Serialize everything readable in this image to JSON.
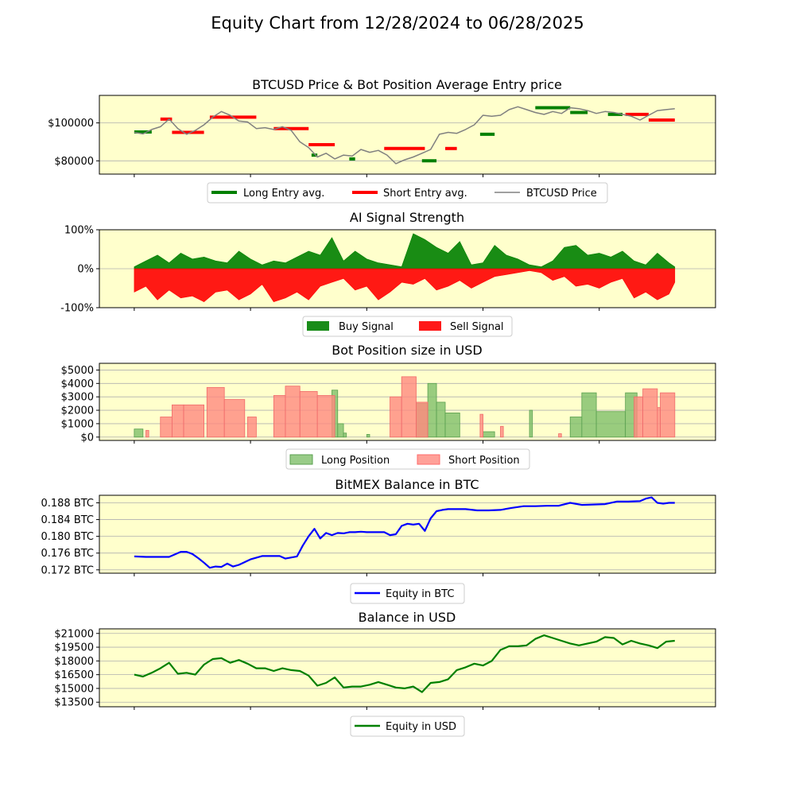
{
  "title": "Equity Chart from 12/28/2024 to 06/28/2025",
  "colors": {
    "panel_bg": "#ffffcc",
    "grid": "#b0b0b0",
    "long": "#008000",
    "short": "#ff0000",
    "price": "#808080",
    "buy": "#008000",
    "sell": "#ff0000",
    "long_area": "#7fbf6a",
    "short_area": "#ff8a80",
    "btc_line": "#0000ff",
    "usd_line": "#008000"
  },
  "chart_data": [
    {
      "id": "price",
      "type": "line",
      "title": "BTCUSD Price & Bot Position Average Entry price",
      "ylim": [
        73000,
        114500
      ],
      "yticks": [
        80000,
        100000
      ],
      "ytick_labels": [
        "$80000",
        "$100000"
      ],
      "grid": true,
      "legend": [
        "Long Entry avg.",
        "Short Entry avg.",
        "BTCUSD Price"
      ],
      "legend_placement": "below",
      "series": [
        {
          "name": "BTCUSD Price",
          "x": [
            0,
            3,
            6,
            9,
            12,
            15,
            18,
            21,
            24,
            27,
            30,
            33,
            36,
            39,
            42,
            45,
            48,
            51,
            54,
            57,
            60,
            63,
            66,
            69,
            72,
            75,
            78,
            81,
            84,
            87,
            90,
            93,
            96,
            99,
            102,
            105,
            108,
            111,
            114,
            117,
            120,
            123,
            126,
            129,
            132,
            135,
            138,
            141,
            144,
            147,
            150,
            153,
            156,
            159,
            162,
            165,
            168,
            171,
            174,
            177,
            180,
            183,
            186
          ],
          "values": [
            95000,
            94200,
            96500,
            98000,
            102000,
            97000,
            94000,
            96000,
            99000,
            103000,
            106000,
            104000,
            101000,
            100500,
            97000,
            97500,
            96500,
            98000,
            96000,
            90000,
            87000,
            82000,
            84000,
            81000,
            83000,
            82500,
            86000,
            84500,
            85500,
            83000,
            78500,
            80500,
            82000,
            84000,
            86000,
            94000,
            95000,
            94500,
            96500,
            99000,
            104000,
            103500,
            104000,
            107000,
            108500,
            107000,
            105500,
            104500,
            106000,
            105000,
            108000,
            107500,
            106500,
            105000,
            106000,
            105500,
            104500,
            103500,
            101500,
            104000,
            106500,
            107000,
            107500
          ]
        },
        {
          "name": "Long Entry avg.",
          "segments": [
            [
              0,
              6,
              95200
            ],
            [
              61,
              63,
              83000
            ],
            [
              74,
              76,
              81000
            ],
            [
              99,
              104,
              80000
            ],
            [
              119,
              124,
              94000
            ],
            [
              138,
              150,
              108000
            ],
            [
              150,
              156,
              105500
            ],
            [
              163,
              168,
              104500
            ]
          ]
        },
        {
          "name": "Short Entry avg.",
          "segments": [
            [
              9,
              13,
              102000
            ],
            [
              13,
              24,
              95000
            ],
            [
              26,
              42,
              103000
            ],
            [
              48,
              60,
              97000
            ],
            [
              60,
              69,
              88500
            ],
            [
              86,
              100,
              86500
            ],
            [
              107,
              111,
              86500
            ],
            [
              169,
              177,
              104500
            ],
            [
              177,
              186,
              101500
            ]
          ]
        }
      ]
    },
    {
      "id": "signal",
      "type": "area",
      "title": "AI Signal Strength",
      "ylim": [
        -100,
        100
      ],
      "yticks": [
        -100,
        0,
        100
      ],
      "ytick_labels": [
        "-100%",
        "0%",
        "100%"
      ],
      "grid": true,
      "legend": [
        "Buy Signal",
        "Sell Signal"
      ],
      "legend_placement": "below",
      "series": [
        {
          "name": "Buy Signal",
          "x": [
            0,
            4,
            8,
            12,
            16,
            20,
            24,
            28,
            32,
            36,
            40,
            44,
            48,
            52,
            56,
            60,
            64,
            68,
            72,
            76,
            80,
            84,
            88,
            92,
            96,
            100,
            104,
            108,
            112,
            116,
            120,
            124,
            128,
            132,
            136,
            140,
            144,
            148,
            152,
            156,
            160,
            164,
            168,
            172,
            176,
            180,
            184,
            186
          ],
          "values": [
            5,
            20,
            35,
            15,
            40,
            25,
            30,
            20,
            15,
            45,
            25,
            10,
            20,
            15,
            30,
            45,
            35,
            80,
            20,
            45,
            25,
            15,
            10,
            5,
            90,
            75,
            55,
            40,
            70,
            10,
            15,
            60,
            35,
            25,
            10,
            5,
            20,
            55,
            60,
            35,
            40,
            30,
            45,
            20,
            10,
            40,
            15,
            5
          ]
        },
        {
          "name": "Sell Signal",
          "x": [
            0,
            4,
            8,
            12,
            16,
            20,
            24,
            28,
            32,
            36,
            40,
            44,
            48,
            52,
            56,
            60,
            64,
            68,
            72,
            76,
            80,
            84,
            88,
            92,
            96,
            100,
            104,
            108,
            112,
            116,
            120,
            124,
            128,
            132,
            136,
            140,
            144,
            148,
            152,
            156,
            160,
            164,
            168,
            172,
            176,
            180,
            184,
            186
          ],
          "values": [
            -60,
            -45,
            -80,
            -55,
            -75,
            -70,
            -85,
            -60,
            -55,
            -80,
            -65,
            -40,
            -85,
            -75,
            -60,
            -80,
            -45,
            -35,
            -25,
            -55,
            -45,
            -80,
            -60,
            -35,
            -40,
            -25,
            -55,
            -45,
            -30,
            -50,
            -35,
            -20,
            -15,
            -10,
            -5,
            -10,
            -30,
            -20,
            -45,
            -40,
            -50,
            -35,
            -25,
            -75,
            -60,
            -80,
            -65,
            -35
          ]
        }
      ]
    },
    {
      "id": "position",
      "type": "area",
      "title": "Bot Position size in USD",
      "ylim": [
        -250,
        5500
      ],
      "yticks": [
        0,
        1000,
        2000,
        3000,
        4000,
        5000
      ],
      "ytick_labels": [
        "$0",
        "$1000",
        "$2000",
        "$3000",
        "$4000",
        "$5000"
      ],
      "grid": true,
      "legend": [
        "Long Position",
        "Short Position"
      ],
      "legend_placement": "below",
      "series": [
        {
          "name": "Long Position",
          "blocks": [
            [
              0,
              3,
              600
            ],
            [
              68,
              70,
              3500
            ],
            [
              70,
              72,
              1000
            ],
            [
              72,
              73,
              300
            ],
            [
              80,
              81,
              200
            ],
            [
              97,
              101,
              2500
            ],
            [
              101,
              104,
              4000
            ],
            [
              104,
              107,
              2600
            ],
            [
              107,
              112,
              1800
            ],
            [
              120,
              124,
              400
            ],
            [
              136,
              137,
              2000
            ],
            [
              150,
              154,
              1500
            ],
            [
              154,
              159,
              3300
            ],
            [
              159,
              169,
              1900
            ],
            [
              169,
              173,
              3300
            ]
          ]
        },
        {
          "name": "Short Position",
          "blocks": [
            [
              4,
              5,
              500
            ],
            [
              9,
              13,
              1500
            ],
            [
              13,
              17,
              2400
            ],
            [
              17,
              24,
              2400
            ],
            [
              25,
              31,
              3700
            ],
            [
              31,
              38,
              2800
            ],
            [
              39,
              42,
              1500
            ],
            [
              48,
              52,
              3100
            ],
            [
              52,
              57,
              3800
            ],
            [
              57,
              63,
              3400
            ],
            [
              63,
              69,
              3100
            ],
            [
              88,
              92,
              3000
            ],
            [
              92,
              97,
              4500
            ],
            [
              97,
              101,
              2600
            ],
            [
              119,
              120,
              1700
            ],
            [
              126,
              127,
              800
            ],
            [
              146,
              147,
              250
            ],
            [
              172,
              175,
              3000
            ],
            [
              175,
              180,
              3600
            ],
            [
              180,
              181,
              2200
            ],
            [
              181,
              186,
              3300
            ]
          ]
        }
      ]
    },
    {
      "id": "btc",
      "type": "line",
      "title": "BitMEX Balance in BTC",
      "ylim": [
        0.1712,
        0.1898
      ],
      "yticks": [
        0.172,
        0.176,
        0.18,
        0.184,
        0.188
      ],
      "ytick_labels": [
        "0.172 BTC",
        "0.176 BTC",
        "0.180 BTC",
        "0.184 BTC",
        "0.188 BTC"
      ],
      "grid": true,
      "legend": [
        "Equity in BTC"
      ],
      "legend_placement": "below",
      "series": [
        {
          "name": "Equity in BTC",
          "x": [
            0,
            4,
            8,
            10,
            12,
            16,
            18,
            20,
            22,
            24,
            26,
            28,
            30,
            32,
            34,
            36,
            40,
            44,
            48,
            50,
            52,
            56,
            58,
            60,
            62,
            64,
            66,
            68,
            70,
            72,
            74,
            76,
            78,
            80,
            86,
            88,
            90,
            92,
            94,
            96,
            98,
            100,
            102,
            104,
            106,
            108,
            110,
            114,
            118,
            122,
            126,
            130,
            134,
            138,
            142,
            146,
            150,
            154,
            158,
            162,
            166,
            170,
            174,
            176,
            178,
            180,
            182,
            184,
            186
          ],
          "values": [
            0.1752,
            0.1751,
            0.1751,
            0.1751,
            0.1751,
            0.1763,
            0.1763,
            0.1758,
            0.1748,
            0.1737,
            0.1725,
            0.1728,
            0.1727,
            0.1735,
            0.1728,
            0.1732,
            0.1745,
            0.1753,
            0.1753,
            0.1753,
            0.1747,
            0.1752,
            0.1778,
            0.18,
            0.1818,
            0.1795,
            0.1808,
            0.1803,
            0.1808,
            0.1807,
            0.181,
            0.181,
            0.1811,
            0.181,
            0.181,
            0.1803,
            0.1805,
            0.1825,
            0.183,
            0.1828,
            0.183,
            0.1813,
            0.1843,
            0.186,
            0.1863,
            0.1865,
            0.1865,
            0.1865,
            0.1862,
            0.1862,
            0.1863,
            0.1868,
            0.1872,
            0.1872,
            0.1873,
            0.1873,
            0.188,
            0.1875,
            0.1876,
            0.1877,
            0.1883,
            0.1883,
            0.1884,
            0.189,
            0.1893,
            0.188,
            0.1878,
            0.188,
            0.188
          ]
        }
      ]
    },
    {
      "id": "usd",
      "type": "line",
      "title": "Balance in USD",
      "ylim": [
        13000,
        21500
      ],
      "yticks": [
        13500,
        15000,
        16500,
        18000,
        19500,
        21000
      ],
      "ytick_labels": [
        "$13500",
        "$15000",
        "$16500",
        "$18000",
        "$19500",
        "$21000"
      ],
      "grid": true,
      "legend": [
        "Equity in USD"
      ],
      "legend_placement": "below",
      "series": [
        {
          "name": "Equity in USD",
          "x": [
            0,
            3,
            6,
            9,
            12,
            15,
            18,
            21,
            24,
            27,
            30,
            33,
            36,
            39,
            42,
            45,
            48,
            51,
            54,
            57,
            60,
            63,
            66,
            69,
            72,
            75,
            78,
            81,
            84,
            87,
            90,
            93,
            96,
            99,
            102,
            105,
            108,
            111,
            114,
            117,
            120,
            123,
            126,
            129,
            132,
            135,
            138,
            141,
            144,
            147,
            150,
            153,
            156,
            159,
            162,
            165,
            168,
            171,
            174,
            177,
            180,
            183,
            186
          ],
          "values": [
            16500,
            16300,
            16700,
            17200,
            17800,
            16600,
            16700,
            16500,
            17600,
            18200,
            18300,
            17800,
            18100,
            17700,
            17200,
            17200,
            16900,
            17200,
            17000,
            16900,
            16400,
            15300,
            15600,
            16200,
            15100,
            15200,
            15200,
            15400,
            15700,
            15400,
            15100,
            15000,
            15200,
            14600,
            15600,
            15700,
            16000,
            17000,
            17300,
            17700,
            17500,
            18000,
            19200,
            19600,
            19600,
            19700,
            20400,
            20800,
            20500,
            20200,
            19900,
            19700,
            19900,
            20100,
            20600,
            20500,
            19800,
            20200,
            19900,
            19700,
            19400,
            20100,
            20200
          ]
        }
      ]
    }
  ]
}
